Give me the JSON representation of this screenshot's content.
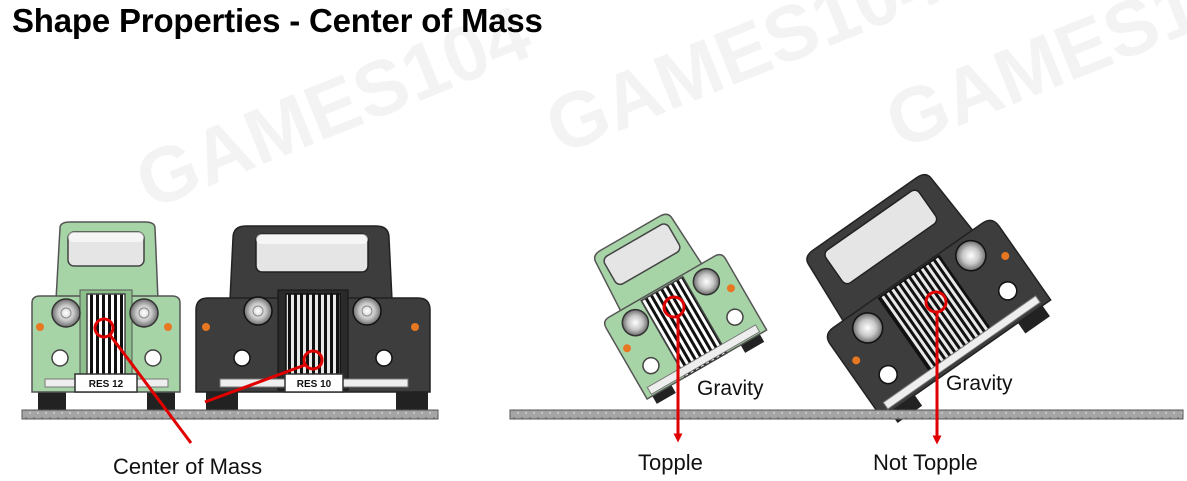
{
  "title": "Shape Properties - Center of Mass",
  "watermark": "GAMES104",
  "colors": {
    "green_body": "#a7d4a7",
    "green_dark": "#8cbf8c",
    "dark_body": "#3d3d3d",
    "dark_panel": "#2a2a2a",
    "marker": "#e00000",
    "ground": "#9a9a9a",
    "lamp": "#e87722"
  },
  "cars": [
    {
      "plate": "RES 12"
    },
    {
      "plate": "RES 10"
    }
  ],
  "labels": {
    "center_of_mass": "Center of Mass",
    "gravity_left": "Gravity",
    "gravity_right": "Gravity",
    "topple": "Topple",
    "not_topple": "Not Topple"
  }
}
